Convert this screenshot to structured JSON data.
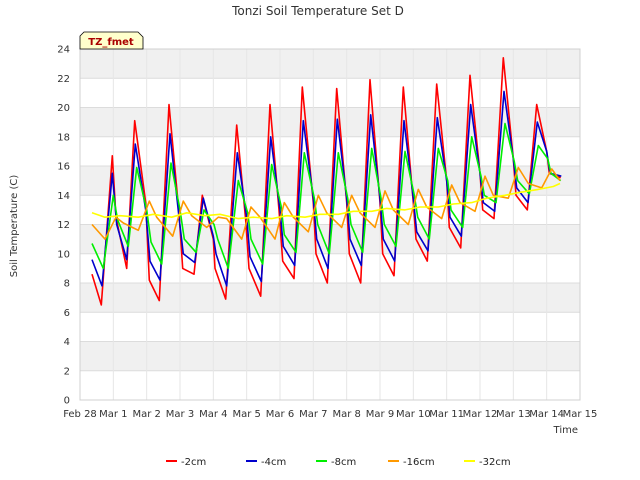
{
  "chart_data": {
    "type": "line",
    "title": "Tonzi Soil Temperature Set D",
    "xlabel": "Time",
    "ylabel": "Soil Temperature (C)",
    "badge": "TZ_fmet",
    "ylim": [
      0,
      24
    ],
    "yticks": [
      0,
      2,
      4,
      6,
      8,
      10,
      12,
      14,
      16,
      18,
      20,
      22,
      24
    ],
    "xlim": [
      0,
      15
    ],
    "xticks": [
      {
        "v": 0,
        "label": "Feb 28"
      },
      {
        "v": 1,
        "label": "Mar 1"
      },
      {
        "v": 2,
        "label": "Mar 2"
      },
      {
        "v": 3,
        "label": "Mar 3"
      },
      {
        "v": 4,
        "label": "Mar 4"
      },
      {
        "v": 5,
        "label": "Mar 5"
      },
      {
        "v": 6,
        "label": "Mar 6"
      },
      {
        "v": 7,
        "label": "Mar 7"
      },
      {
        "v": 8,
        "label": "Mar 8"
      },
      {
        "v": 9,
        "label": "Mar 9"
      },
      {
        "v": 10,
        "label": "Mar 10"
      },
      {
        "v": 11,
        "label": "Mar 11"
      },
      {
        "v": 12,
        "label": "Mar 12"
      },
      {
        "v": 13,
        "label": "Mar 13"
      },
      {
        "v": 14,
        "label": "Mar 14"
      },
      {
        "v": 15,
        "label": "Mar 15"
      }
    ],
    "grid": true,
    "legend_position": "bottom",
    "series": [
      {
        "name": "-2cm",
        "color": "#ff0000",
        "x": [
          0.36,
          0.64,
          0.97,
          1.08,
          1.4,
          1.64,
          1.97,
          2.08,
          2.38,
          2.67,
          2.97,
          3.08,
          3.42,
          3.67,
          4.0,
          4.05,
          4.37,
          4.7,
          4.97,
          5.07,
          5.42,
          5.7,
          5.97,
          6.08,
          6.42,
          6.67,
          7.0,
          7.08,
          7.42,
          7.7,
          8.0,
          8.08,
          8.42,
          8.7,
          9.0,
          9.08,
          9.42,
          9.7,
          10.0,
          10.08,
          10.42,
          10.7,
          11.0,
          11.08,
          11.42,
          11.7,
          12.0,
          12.08,
          12.42,
          12.7,
          13.0,
          13.08,
          13.42,
          13.7,
          14.0,
          14.08,
          14.42
        ],
        "y": [
          8.6,
          6.5,
          16.7,
          12.5,
          9.0,
          19.1,
          13.5,
          8.2,
          6.8,
          20.2,
          12.8,
          9.0,
          8.6,
          14.0,
          11.0,
          9.0,
          6.9,
          18.8,
          12.3,
          9.0,
          7.1,
          20.2,
          13.0,
          9.5,
          8.3,
          21.4,
          13.5,
          10.0,
          8.0,
          21.3,
          13.5,
          10.0,
          8.0,
          21.9,
          13.5,
          10.0,
          8.5,
          21.4,
          13.5,
          11.0,
          9.5,
          21.6,
          15.0,
          11.8,
          10.4,
          22.2,
          15.5,
          13.0,
          12.4,
          23.4,
          16.5,
          14.0,
          13.0,
          20.2,
          17.0,
          15.5,
          15.2
        ]
      },
      {
        "name": "-4cm",
        "color": "#0000cc",
        "x": [
          0.36,
          0.66,
          0.97,
          1.1,
          1.4,
          1.66,
          1.97,
          2.1,
          2.4,
          2.7,
          2.97,
          3.1,
          3.44,
          3.7,
          4.0,
          4.08,
          4.4,
          4.72,
          5.0,
          5.1,
          5.44,
          5.72,
          6.0,
          6.1,
          6.44,
          6.7,
          7.0,
          7.1,
          7.44,
          7.72,
          8.0,
          8.1,
          8.44,
          8.72,
          9.0,
          9.1,
          9.44,
          9.72,
          10.0,
          10.1,
          10.44,
          10.72,
          11.0,
          11.1,
          11.44,
          11.72,
          12.0,
          12.1,
          12.44,
          12.72,
          13.0,
          13.1,
          13.44,
          13.72,
          14.0,
          14.1,
          14.44
        ],
        "y": [
          9.6,
          7.8,
          15.5,
          12.0,
          9.6,
          17.5,
          13.0,
          9.5,
          8.2,
          18.2,
          12.5,
          10.0,
          9.4,
          13.8,
          11.2,
          10.0,
          7.8,
          16.9,
          12.5,
          9.8,
          8.1,
          18.0,
          13.0,
          10.5,
          9.2,
          19.1,
          13.8,
          11.0,
          9.0,
          19.2,
          13.8,
          11.0,
          9.2,
          19.5,
          13.8,
          11.0,
          9.5,
          19.1,
          13.8,
          11.5,
          10.2,
          19.3,
          15.0,
          12.5,
          11.2,
          20.2,
          15.5,
          13.5,
          12.9,
          21.1,
          16.5,
          14.5,
          13.5,
          19.0,
          17.0,
          15.5,
          15.3
        ]
      },
      {
        "name": "-8cm",
        "color": "#00ee00",
        "x": [
          0.36,
          0.7,
          1.0,
          1.13,
          1.45,
          1.7,
          2.0,
          2.13,
          2.45,
          2.73,
          3.0,
          3.13,
          3.48,
          3.72,
          4.02,
          4.13,
          4.45,
          4.75,
          5.03,
          5.13,
          5.48,
          5.75,
          6.03,
          6.13,
          6.48,
          6.73,
          7.03,
          7.13,
          7.48,
          7.75,
          8.03,
          8.13,
          8.48,
          8.75,
          9.03,
          9.13,
          9.48,
          9.75,
          10.03,
          10.13,
          10.48,
          10.75,
          11.03,
          11.13,
          11.48,
          11.75,
          12.03,
          12.13,
          12.48,
          12.75,
          13.03,
          13.13,
          13.48,
          13.75,
          14.03,
          14.13,
          14.42
        ],
        "y": [
          10.7,
          9.0,
          14.0,
          12.3,
          10.5,
          15.9,
          13.0,
          10.8,
          9.3,
          16.2,
          13.0,
          11.0,
          10.1,
          13.0,
          12.0,
          11.0,
          9.0,
          15.0,
          12.8,
          11.0,
          9.3,
          16.1,
          13.3,
          11.3,
          10.1,
          16.9,
          13.8,
          12.0,
          10.0,
          16.9,
          13.8,
          12.0,
          10.1,
          17.2,
          13.8,
          12.0,
          10.5,
          17.0,
          14.0,
          12.5,
          11.0,
          17.2,
          15.0,
          13.0,
          11.8,
          18.0,
          15.3,
          14.0,
          13.5,
          18.9,
          16.3,
          15.0,
          14.1,
          17.4,
          16.5,
          15.5,
          15.0
        ]
      },
      {
        "name": "-16cm",
        "color": "#ff9900",
        "x": [
          0.36,
          0.75,
          1.08,
          1.3,
          1.75,
          2.08,
          2.3,
          2.78,
          3.1,
          3.35,
          3.8,
          4.15,
          4.4,
          4.85,
          5.13,
          5.4,
          5.85,
          6.13,
          6.4,
          6.85,
          7.15,
          7.4,
          7.85,
          8.15,
          8.4,
          8.85,
          9.15,
          9.4,
          9.85,
          10.15,
          10.4,
          10.85,
          11.15,
          11.4,
          11.85,
          12.15,
          12.4,
          12.85,
          13.15,
          13.45,
          13.85,
          14.15,
          14.4
        ],
        "y": [
          12.0,
          11.0,
          12.5,
          12.1,
          11.6,
          13.6,
          12.5,
          11.2,
          13.6,
          12.6,
          11.8,
          12.5,
          12.4,
          11.0,
          13.2,
          12.5,
          11.0,
          13.5,
          12.5,
          11.5,
          14.0,
          12.8,
          11.8,
          14.0,
          12.8,
          11.8,
          14.3,
          13.0,
          12.0,
          14.4,
          13.2,
          12.4,
          14.7,
          13.5,
          12.9,
          15.3,
          14.0,
          13.8,
          15.9,
          14.8,
          14.5,
          15.8,
          15.0
        ]
      },
      {
        "name": "-32cm",
        "color": "#ffff00",
        "x": [
          0.36,
          0.75,
          1.2,
          1.75,
          2.2,
          2.75,
          3.2,
          3.75,
          4.2,
          4.75,
          5.2,
          5.75,
          6.2,
          6.75,
          7.2,
          7.75,
          8.2,
          8.75,
          9.2,
          9.75,
          10.2,
          10.75,
          11.2,
          11.75,
          12.2,
          12.75,
          13.2,
          13.75,
          14.2,
          14.4
        ],
        "y": [
          12.8,
          12.5,
          12.6,
          12.5,
          12.7,
          12.5,
          12.8,
          12.6,
          12.7,
          12.4,
          12.5,
          12.4,
          12.6,
          12.5,
          12.7,
          12.7,
          12.9,
          12.9,
          13.1,
          13.0,
          13.2,
          13.2,
          13.4,
          13.5,
          13.8,
          14.0,
          14.2,
          14.4,
          14.6,
          14.8
        ]
      }
    ]
  }
}
